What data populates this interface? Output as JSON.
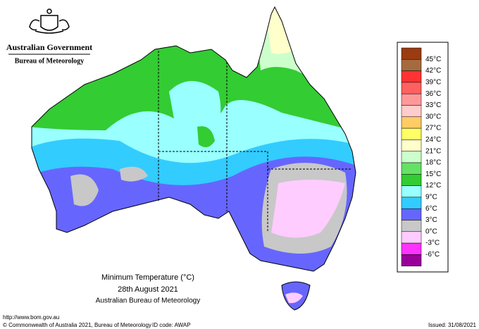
{
  "header": {
    "government": "Australian Government",
    "agency": "Bureau of Meteorology"
  },
  "map": {
    "title": "Minimum Temperature (°C)",
    "date": "28th August 2021",
    "source": "Australian Bureau of Meteorology"
  },
  "legend": {
    "labels": [
      "45°C",
      "42°C",
      "39°C",
      "36°C",
      "33°C",
      "30°C",
      "27°C",
      "24°C",
      "21°C",
      "18°C",
      "15°C",
      "12°C",
      "9°C",
      "6°C",
      "3°C",
      "0°C",
      "-3°C",
      "-6°C"
    ],
    "colors": [
      "#9a3b10",
      "#a56b3f",
      "#ff3333",
      "#ff6161",
      "#ff9999",
      "#ffcccc",
      "#ffcc66",
      "#ffff66",
      "#ffffcc",
      "#ccffcc",
      "#66e066",
      "#33cc33",
      "#99ffff",
      "#33ccff",
      "#6666ff",
      "#c8c8c8",
      "#ffccff",
      "#ff33ff",
      "#990099"
    ]
  },
  "footer": {
    "url": "http://www.bom.gov.au",
    "copyright": "© Commonwealth of Australia 2021, Bureau of Meteorology",
    "id_code": "ID code: AWAP",
    "issued": "Issued: 31/08/2021"
  }
}
